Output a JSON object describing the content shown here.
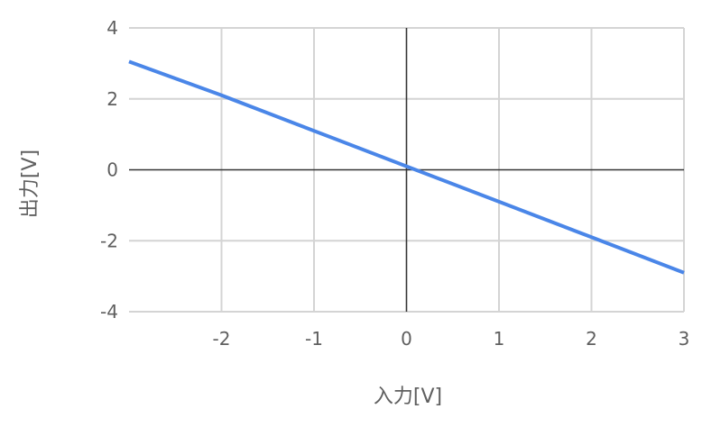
{
  "chart_data": {
    "type": "line",
    "title": "",
    "xlabel": "入力[V]",
    "ylabel": "出力[V]",
    "xlim": [
      -3,
      3
    ],
    "ylim": [
      -4,
      4
    ],
    "x_ticks": [
      "-2",
      "-1",
      "0",
      "1",
      "2",
      "3"
    ],
    "y_ticks": [
      "4",
      "2",
      "0",
      "-2",
      "-4"
    ],
    "grid": true,
    "legend": "none",
    "series": [
      {
        "color": "#4a86e8",
        "x": [
          -3,
          -2,
          -1,
          0,
          1,
          2,
          3
        ],
        "y": [
          3.05,
          2.1,
          1.1,
          0.1,
          -0.9,
          -1.9,
          -2.9
        ]
      }
    ]
  }
}
